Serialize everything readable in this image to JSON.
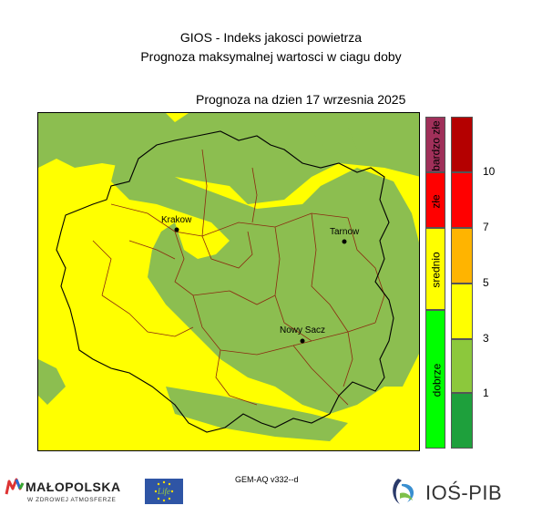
{
  "title_line1": "GIOS - Indeks jakosci powietrza",
  "title_line2": "Prognoza maksymalnej wartosci w ciagu doby",
  "forecast_label": "Prognoza na dzien  17 wrzesnia 2025",
  "model_label": "GEM-AQ v332--d",
  "cities": [
    {
      "name": "Krakow"
    },
    {
      "name": "Tarnow"
    },
    {
      "name": "Nowy Sacz"
    }
  ],
  "categories": [
    {
      "label": "bardzo złe",
      "color": "#a0305a"
    },
    {
      "label": "złe",
      "color": "#ff0000"
    },
    {
      "label": "srednio",
      "color": "#ffff00"
    },
    {
      "label": "dobrze",
      "color": "#00ff00"
    }
  ],
  "scale": {
    "colors_top_to_bottom": [
      "#b40000",
      "#ff0000",
      "#ffb400",
      "#ffff00",
      "#8cc83c",
      "#1ea03c"
    ],
    "ticks": [
      "10",
      "7",
      "5",
      "3",
      "1"
    ]
  },
  "map_colors": {
    "yellow": "#ffff00",
    "green": "#8cbe50",
    "district_border": "#8b2a10",
    "region_border": "#000000"
  },
  "logos": {
    "malopolska_name": "MAŁOPOLSKA",
    "malopolska_slogan": "W ZDROWEJ ATMOSFERZE",
    "eu_flag_text": "Life",
    "ios_name": "IOŚ-PIB"
  }
}
